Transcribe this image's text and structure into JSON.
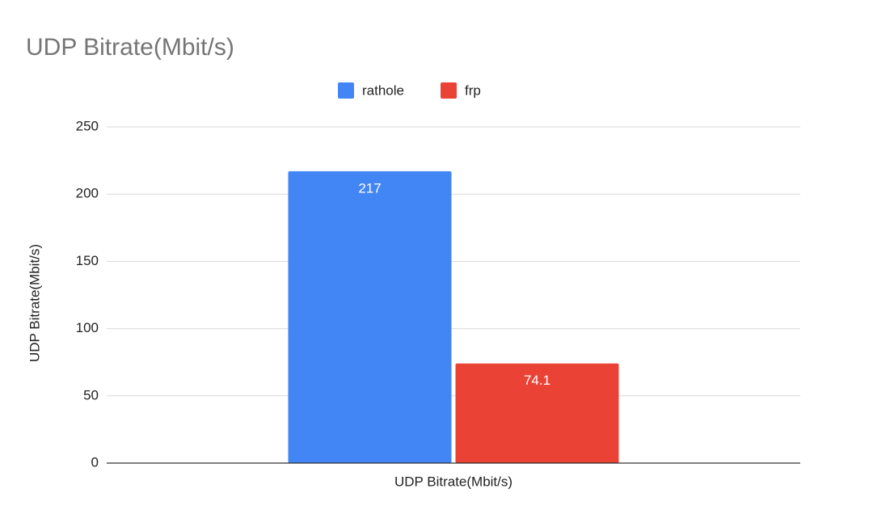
{
  "chart_data": {
    "type": "bar",
    "title": "UDP Bitrate(Mbit/s)",
    "y_label": "UDP Bitrate(Mbit/s)",
    "categories": [
      "UDP Bitrate(Mbit/s)"
    ],
    "series": [
      {
        "name": "rathole",
        "color": "#4285f4",
        "values": [
          217
        ]
      },
      {
        "name": "frp",
        "color": "#ea4335",
        "values": [
          74.1
        ]
      }
    ],
    "ylim": [
      0,
      250
    ],
    "yticks": [
      0,
      50,
      100,
      150,
      200,
      250
    ],
    "grid": true,
    "legend": "top"
  }
}
